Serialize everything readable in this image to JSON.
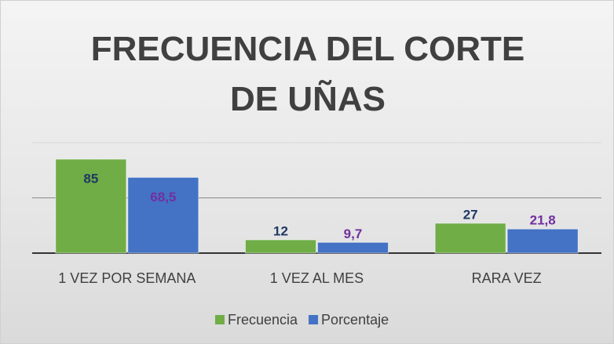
{
  "chart_data": {
    "type": "bar",
    "title": "FRECUENCIA DEL CORTE DE UÑAS",
    "categories": [
      "1 VEZ POR SEMANA",
      "1 VEZ AL MES",
      "RARA VEZ"
    ],
    "series": [
      {
        "name": "Frecuencia",
        "color": "#70ad47",
        "label_color": "#1f3864",
        "values": [
          85,
          12,
          27
        ]
      },
      {
        "name": "Porcentaje",
        "color": "#4472c4",
        "label_color": "#7030a0",
        "values": [
          68.5,
          9.7,
          21.8
        ],
        "value_labels": [
          "68,5",
          "9,7",
          "21,8"
        ]
      }
    ],
    "ylim": [
      0,
      100
    ],
    "yticks": [
      0,
      50,
      100
    ],
    "grid": true,
    "legend": "bottom"
  }
}
